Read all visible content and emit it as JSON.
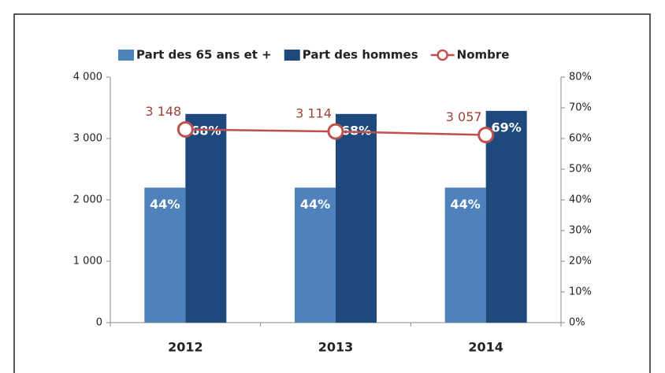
{
  "chart_data": {
    "type": "bar",
    "categories": [
      "2012",
      "2013",
      "2014"
    ],
    "series": [
      {
        "name": "Part des 65 ans et +",
        "type": "bar",
        "axis": "y2",
        "color": "#4f81bd",
        "values": [
          44,
          44,
          44
        ],
        "value_labels": [
          "44%",
          "44%",
          "44%"
        ]
      },
      {
        "name": "Part des hommes",
        "type": "bar",
        "axis": "y2",
        "color": "#1f497d",
        "values": [
          68,
          68,
          69
        ],
        "value_labels": [
          "68%",
          "68%",
          "69%"
        ]
      },
      {
        "name": "Nombre",
        "type": "line",
        "color": "#c0504d",
        "values": [
          3148,
          3114,
          3057
        ],
        "value_labels": [
          "3 148",
          "3 114",
          "3 057"
        ]
      }
    ],
    "ylim": [
      0,
      4000
    ],
    "yticks": [
      {
        "value": 0,
        "label": "0"
      },
      {
        "value": 1000,
        "label": "1 000"
      },
      {
        "value": 2000,
        "label": "2 000"
      },
      {
        "value": 3000,
        "label": "3 000"
      },
      {
        "value": 4000,
        "label": "4 000"
      }
    ],
    "y2lim": [
      0,
      80
    ],
    "y2ticks": [
      {
        "value": 0,
        "label": "0%"
      },
      {
        "value": 10,
        "label": "10%"
      },
      {
        "value": 20,
        "label": "20%"
      },
      {
        "value": 30,
        "label": "30%"
      },
      {
        "value": 40,
        "label": "40%"
      },
      {
        "value": 50,
        "label": "50%"
      },
      {
        "value": 60,
        "label": "60%"
      },
      {
        "value": 70,
        "label": "70%"
      },
      {
        "value": 80,
        "label": "80%"
      }
    ],
    "legend": "top",
    "grid": false
  }
}
